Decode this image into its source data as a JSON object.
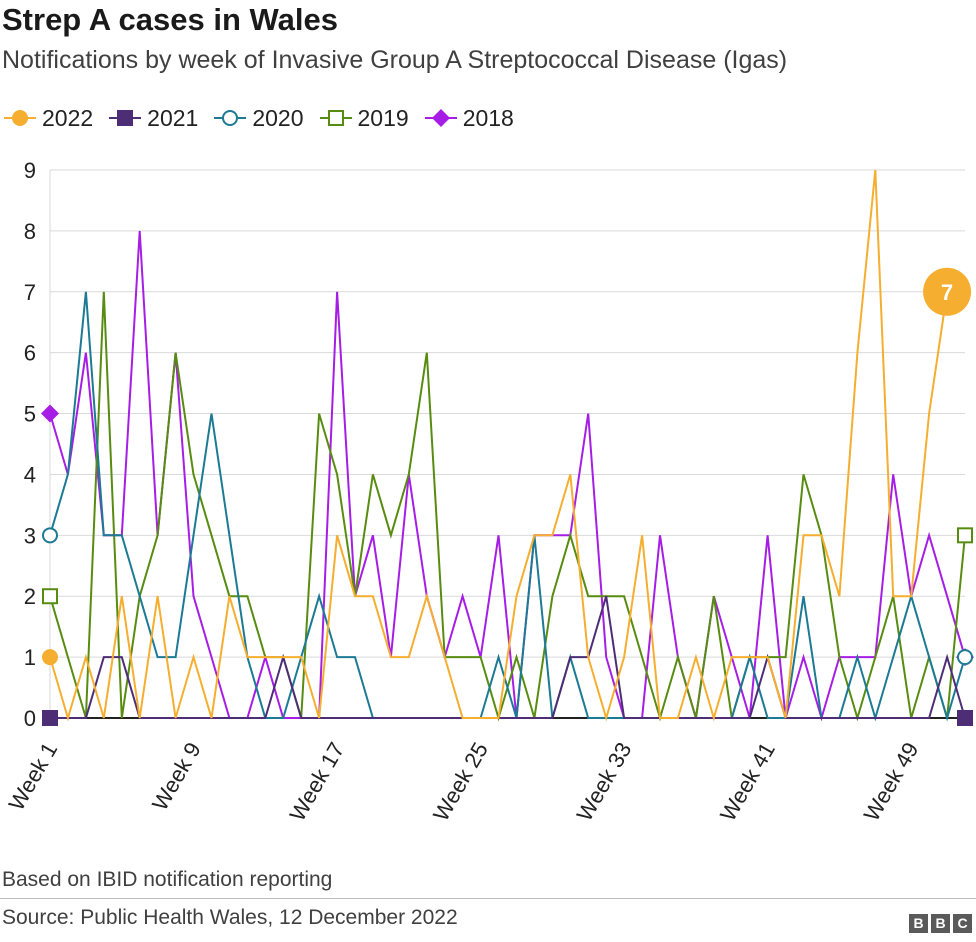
{
  "header": {
    "title": "Strep A cases in Wales",
    "subtitle": "Notifications by week of Invasive Group A Streptococcal Disease (Igas)"
  },
  "footer": {
    "note": "Based on IBID notification reporting",
    "source": "Source: Public Health Wales, 12 December 2022",
    "logo": [
      "B",
      "B",
      "C"
    ]
  },
  "chart_data": {
    "type": "line",
    "title": "Strep A cases in Wales",
    "subtitle": "Notifications by week of Invasive Group A Streptococcal Disease (Igas)",
    "xlabel": "",
    "ylabel": "",
    "ylim": [
      0,
      9
    ],
    "yticks": [
      0,
      1,
      2,
      3,
      4,
      5,
      6,
      7,
      8,
      9
    ],
    "xlim": [
      1,
      52
    ],
    "x_tick_weeks": [
      1,
      9,
      17,
      25,
      33,
      41,
      49
    ],
    "x_tick_labels": [
      "Week 1",
      "Week 9",
      "Week 17",
      "Week 25",
      "Week 33",
      "Week 41",
      "Week 49"
    ],
    "grid": "horizontal",
    "legend_position": "top-left",
    "series": [
      {
        "name": "2018",
        "color": "#a61ee6",
        "marker": "diamond",
        "values": [
          5,
          4,
          6,
          3,
          3,
          8,
          3,
          6,
          2,
          1,
          0,
          0,
          1,
          0,
          0,
          0,
          7,
          2,
          3,
          1,
          4,
          2,
          1,
          2,
          1,
          3,
          0,
          3,
          3,
          3,
          5,
          1,
          0,
          0,
          3,
          1,
          0,
          2,
          1,
          0,
          3,
          0,
          1,
          0,
          1,
          1,
          1,
          4,
          2,
          3,
          2,
          1
        ]
      },
      {
        "name": "2019",
        "color": "#588c11",
        "marker": "square-open",
        "values": [
          2,
          1,
          0,
          7,
          0,
          2,
          3,
          6,
          4,
          3,
          2,
          2,
          1,
          1,
          0,
          5,
          4,
          2,
          4,
          3,
          4,
          6,
          1,
          1,
          1,
          0,
          1,
          0,
          2,
          3,
          2,
          2,
          2,
          1,
          0,
          1,
          0,
          2,
          0,
          1,
          1,
          1,
          4,
          3,
          1,
          0,
          1,
          2,
          0,
          1,
          0,
          3
        ]
      },
      {
        "name": "2020",
        "color": "#1c7a94",
        "marker": "circle-open",
        "values": [
          3,
          4,
          7,
          3,
          3,
          2,
          1,
          1,
          3,
          5,
          3,
          1,
          0,
          0,
          1,
          2,
          1,
          1,
          0,
          0,
          0,
          0,
          0,
          0,
          0,
          1,
          0,
          3,
          0,
          1,
          0,
          0,
          0,
          0,
          0,
          0,
          0,
          0,
          0,
          1,
          0,
          0,
          2,
          0,
          0,
          1,
          0,
          1,
          2,
          1,
          0,
          1
        ]
      },
      {
        "name": "2021",
        "color": "#4e2d77",
        "marker": "square",
        "values": [
          0,
          0,
          0,
          1,
          1,
          0,
          0,
          0,
          0,
          0,
          0,
          0,
          0,
          1,
          0,
          0,
          0,
          0,
          0,
          0,
          0,
          0,
          0,
          0,
          0,
          0,
          0,
          0,
          0,
          1,
          1,
          2,
          0,
          0,
          0,
          0,
          0,
          0,
          0,
          0,
          1,
          0,
          0,
          0,
          0,
          0,
          0,
          0,
          0,
          0,
          1,
          0
        ]
      },
      {
        "name": "2022",
        "color": "#f5ae2f",
        "marker": "circle",
        "values": [
          1,
          0,
          1,
          0,
          2,
          0,
          2,
          0,
          1,
          0,
          2,
          1,
          1,
          1,
          1,
          0,
          3,
          2,
          2,
          1,
          1,
          2,
          1,
          0,
          0,
          0,
          2,
          3,
          3,
          4,
          1,
          0,
          1,
          3,
          0,
          0,
          1,
          0,
          1,
          1,
          1,
          0,
          3,
          3,
          2,
          6,
          9,
          2,
          2,
          5,
          7
        ]
      }
    ],
    "annotation": {
      "series": "2022",
      "week": 51,
      "value": 7,
      "label": "7"
    }
  }
}
